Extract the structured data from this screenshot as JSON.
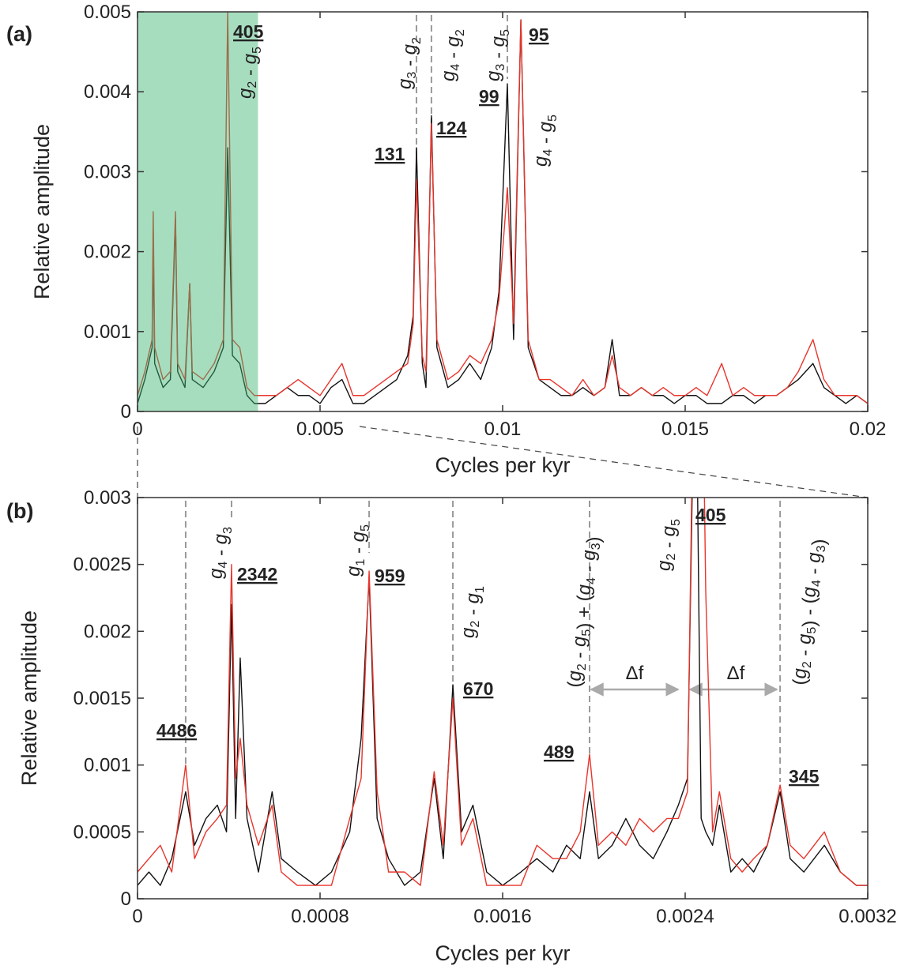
{
  "chart_data": [
    {
      "type": "line",
      "panel_label": "(a)",
      "xlabel": "Cycles per kyr",
      "ylabel": "Relative amplitude",
      "xlim": [
        0,
        0.02
      ],
      "xticks": [
        0,
        0.005,
        0.01,
        0.015,
        0.02
      ],
      "ylim": [
        0,
        0.005
      ],
      "yticks": [
        0,
        0.001,
        0.002,
        0.003,
        0.004,
        0.005
      ],
      "highlight": {
        "xlim": [
          0,
          0.0033
        ],
        "color": "#3cb371"
      },
      "guides": [
        0.00764,
        0.00805,
        0.01013
      ],
      "x": [
        0,
        0.0002,
        0.0004,
        0.00043,
        0.00047,
        0.0007,
        0.0009,
        0.00104,
        0.0011,
        0.0013,
        0.00143,
        0.0015,
        0.0018,
        0.0021,
        0.00235,
        0.00247,
        0.0026,
        0.0028,
        0.003,
        0.0032,
        0.0035,
        0.0038,
        0.0041,
        0.0044,
        0.0047,
        0.005,
        0.0053,
        0.0056,
        0.0059,
        0.0062,
        0.0065,
        0.0068,
        0.0071,
        0.0074,
        0.00755,
        0.00764,
        0.0078,
        0.0079,
        0.00805,
        0.0082,
        0.0085,
        0.0088,
        0.0091,
        0.0094,
        0.0097,
        0.0099,
        0.01013,
        0.0103,
        0.0105,
        0.0107,
        0.011,
        0.0113,
        0.0116,
        0.0119,
        0.0122,
        0.0125,
        0.0128,
        0.013,
        0.0132,
        0.0135,
        0.0138,
        0.0141,
        0.0144,
        0.0147,
        0.015,
        0.0153,
        0.0156,
        0.016,
        0.0163,
        0.0166,
        0.0169,
        0.0172,
        0.0175,
        0.0178,
        0.0181,
        0.0185,
        0.0188,
        0.0191,
        0.0194,
        0.0197,
        0.02
      ],
      "series": [
        {
          "color": "#111111",
          "values": [
            0.0001,
            0.0004,
            0.0008,
            0.0022,
            0.0006,
            0.0003,
            0.0004,
            0.0024,
            0.0005,
            0.0003,
            0.0016,
            0.0004,
            0.0003,
            0.0005,
            0.0008,
            0.0033,
            0.0007,
            0.0006,
            0.0002,
            0.0001,
            0.0001,
            0.0002,
            0.0003,
            0.0002,
            0.0002,
            0.0001,
            0.0003,
            0.0004,
            0.0001,
            0.0001,
            0.0002,
            0.0003,
            0.0004,
            0.0007,
            0.0012,
            0.0033,
            0.0006,
            0.0003,
            0.0037,
            0.0008,
            0.0003,
            0.0004,
            0.0006,
            0.0004,
            0.0008,
            0.0015,
            0.0041,
            0.0009,
            0.0049,
            0.0008,
            0.0004,
            0.0003,
            0.0002,
            0.0002,
            0.0003,
            0.0002,
            0.0003,
            0.0009,
            0.0002,
            0.0002,
            0.0003,
            0.0002,
            0.0002,
            0.0001,
            0.0002,
            0.0002,
            0.0001,
            0.0001,
            0.0002,
            0.0002,
            0.0001,
            0.0002,
            0.0002,
            0.0003,
            0.0004,
            0.0006,
            0.0003,
            0.0002,
            0.0001,
            0.0002,
            0.0001
          ]
        },
        {
          "color": "#e8352c",
          "values": [
            0.0002,
            0.0005,
            0.0009,
            0.0025,
            0.0008,
            0.0004,
            0.0005,
            0.0025,
            0.0006,
            0.0004,
            0.0016,
            0.0005,
            0.0004,
            0.0006,
            0.0009,
            0.005,
            0.0009,
            0.0008,
            0.0003,
            0.0002,
            0.0002,
            0.0002,
            0.0003,
            0.0004,
            0.0003,
            0.0002,
            0.0004,
            0.0006,
            0.0002,
            0.0002,
            0.0003,
            0.0004,
            0.0005,
            0.0006,
            0.0011,
            0.0029,
            0.0007,
            0.0005,
            0.0036,
            0.0009,
            0.0004,
            0.0005,
            0.0007,
            0.0006,
            0.0009,
            0.0014,
            0.0028,
            0.0011,
            0.0049,
            0.0009,
            0.0004,
            0.0004,
            0.0003,
            0.0002,
            0.0004,
            0.0002,
            0.0003,
            0.0007,
            0.0003,
            0.0002,
            0.0003,
            0.0002,
            0.0003,
            0.0002,
            0.0002,
            0.0003,
            0.0002,
            0.0006,
            0.0002,
            0.0003,
            0.0002,
            0.0002,
            0.0002,
            0.0003,
            0.0005,
            0.0009,
            0.0004,
            0.0002,
            0.0002,
            0.0002,
            0.0001
          ]
        }
      ],
      "annotations": [
        "405",
        "131",
        "124",
        "99",
        "95",
        "g2 - g5",
        "g3 - g2",
        "g4 - g2",
        "g3 - g5",
        "g4 - g5"
      ]
    },
    {
      "type": "line",
      "panel_label": "(b)",
      "xlabel": "Cycles per kyr",
      "ylabel": "Relative amplitude",
      "xlim": [
        0,
        0.0032
      ],
      "xticks": [
        0,
        0.0008,
        0.0016,
        0.0024,
        0.0032
      ],
      "ylim": [
        0,
        0.003
      ],
      "yticks": [
        0,
        0.0005,
        0.001,
        0.0015,
        0.002,
        0.0025,
        0.003
      ],
      "guides": [
        0.000211,
        0.000412,
        0.001015,
        0.001382,
        0.001981,
        0.002816
      ],
      "x": [
        0,
        5e-05,
        0.0001,
        0.00015,
        0.000211,
        0.00025,
        0.0003,
        0.00035,
        0.00039,
        0.000412,
        0.00043,
        0.00045,
        0.00048,
        0.00053,
        0.00059,
        0.00063,
        0.0007,
        0.00078,
        0.00085,
        0.00093,
        0.00098,
        0.001015,
        0.00105,
        0.0011,
        0.00117,
        0.00124,
        0.0013,
        0.00134,
        0.001382,
        0.00142,
        0.00147,
        0.00153,
        0.0016,
        0.00168,
        0.00175,
        0.00182,
        0.00188,
        0.00194,
        0.001981,
        0.00202,
        0.00208,
        0.00214,
        0.0022,
        0.00226,
        0.00232,
        0.00237,
        0.00241,
        0.002445,
        0.00247,
        0.00249,
        0.00252,
        0.00255,
        0.0026,
        0.00265,
        0.0027,
        0.00276,
        0.002816,
        0.00286,
        0.00292,
        0.00301,
        0.00308,
        0.00315,
        0.0032
      ],
      "series": [
        {
          "color": "#111111",
          "values": [
            0.0001,
            0.0002,
            0.0001,
            0.0003,
            0.0008,
            0.0004,
            0.0006,
            0.0007,
            0.0005,
            0.0022,
            0.0006,
            0.0018,
            0.0006,
            0.0002,
            0.0008,
            0.0003,
            0.0002,
            0.0001,
            0.0002,
            0.0005,
            0.0012,
            0.0024,
            0.0006,
            0.0003,
            0.0001,
            0.0002,
            0.0009,
            0.0003,
            0.0016,
            0.0005,
            0.0007,
            0.0002,
            0.0001,
            0.0002,
            0.0003,
            0.0002,
            0.0004,
            0.0003,
            0.0008,
            0.0003,
            0.0004,
            0.0006,
            0.0004,
            0.0003,
            0.0005,
            0.0007,
            0.0009,
            0.0045,
            0.0006,
            0.0005,
            0.0004,
            0.0007,
            0.0002,
            0.0003,
            0.0002,
            0.0004,
            0.0008,
            0.0003,
            0.0002,
            0.0004,
            0.0002,
            0.0001,
            0.0001
          ]
        },
        {
          "color": "#e8352c",
          "values": [
            0.0002,
            0.0003,
            0.0004,
            0.0002,
            0.001,
            0.0003,
            0.0005,
            0.0006,
            0.0007,
            0.0025,
            0.0009,
            0.0012,
            0.0007,
            0.0004,
            0.0007,
            0.0002,
            0.0001,
            0.0001,
            0.0001,
            0.0006,
            0.0009,
            0.00245,
            0.0008,
            0.0002,
            0.0002,
            0.0001,
            0.00095,
            0.0004,
            0.0015,
            0.0004,
            0.0006,
            0.0001,
            0.0001,
            0.0001,
            0.0004,
            0.0003,
            0.0003,
            0.0005,
            0.00108,
            0.0004,
            0.0005,
            0.0004,
            0.0006,
            0.0005,
            0.0006,
            0.0006,
            0.0008,
            0.005,
            0.0048,
            0.0023,
            0.0005,
            0.0008,
            0.0003,
            0.0002,
            0.0003,
            0.0004,
            0.00085,
            0.0004,
            0.0003,
            0.0005,
            0.0002,
            0.0001,
            0.0001
          ]
        }
      ],
      "annotations": [
        "4486",
        "2342",
        "959",
        "670",
        "489",
        "405",
        "345",
        "g4 - g3",
        "g1 - g5",
        "g2 - g1",
        "(g2 - g5) + (g4 - g3)",
        "g2 - g5",
        "(g2 - g5) - (g4 - g3)",
        "Δf",
        "Δf"
      ]
    }
  ]
}
